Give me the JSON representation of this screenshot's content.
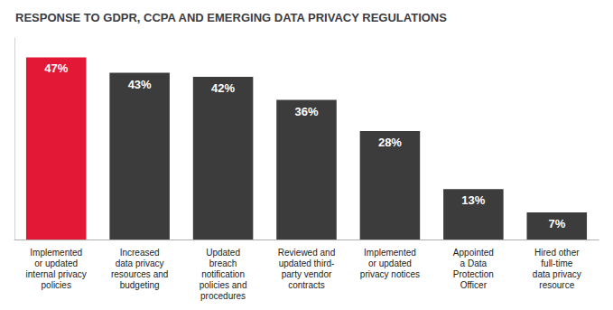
{
  "chart_data": {
    "type": "bar",
    "title": "RESPONSE TO GDPR, CCPA AND EMERGING DATA PRIVACY REGULATIONS",
    "categories": [
      "Implemented\nor updated\ninternal privacy\npolicies",
      "Increased\ndata privacy\nresources and\nbudgeting",
      "Updated\nbreach\nnotification\npolicies and\nprocedures",
      "Reviewed and\nupdated third-\nparty vendor\ncontracts",
      "Implemented\nor updated\nprivacy notices",
      "Appointed\na Data\nProtection\nOfficer",
      "Hired other\nfull-time\ndata privacy\nresource"
    ],
    "values": [
      47,
      43,
      42,
      36,
      28,
      13,
      7
    ],
    "value_labels": [
      "47%",
      "43%",
      "42%",
      "36%",
      "28%",
      "13%",
      "7%"
    ],
    "colors": [
      "#e31837",
      "#3c3c3c",
      "#3c3c3c",
      "#3c3c3c",
      "#3c3c3c",
      "#3c3c3c",
      "#3c3c3c"
    ],
    "ylim": [
      0,
      52
    ],
    "data_labels": true,
    "tick_labels": "x",
    "grid": false
  }
}
